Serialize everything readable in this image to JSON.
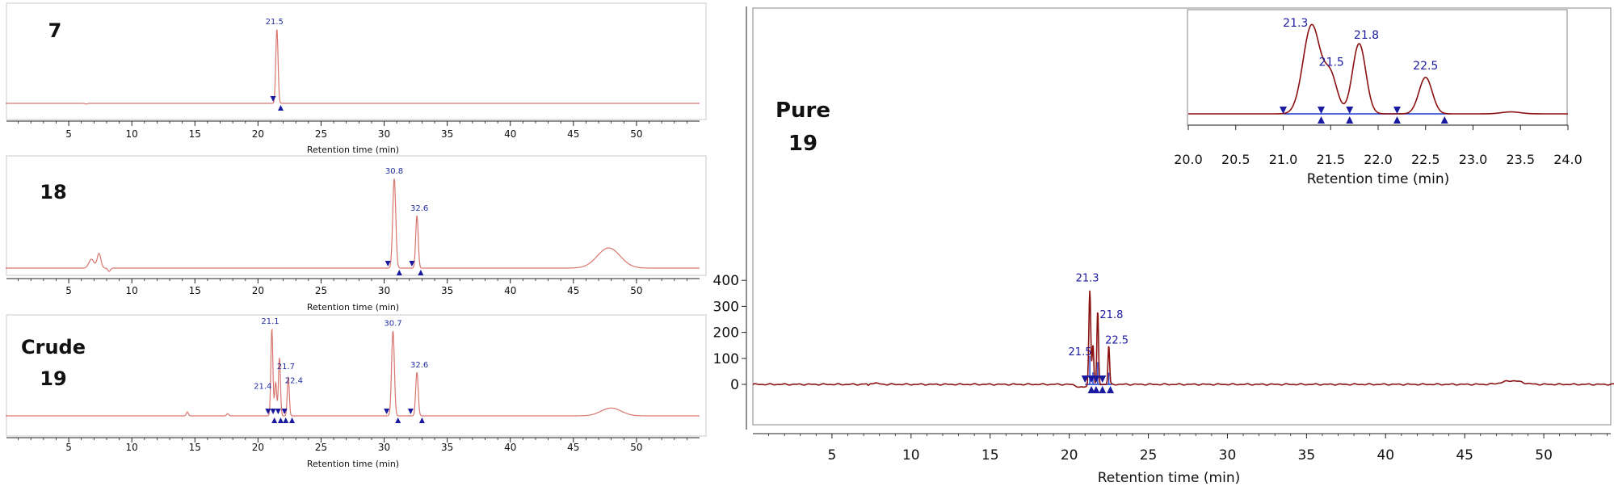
{
  "colors": {
    "trace_light": "#d9766f",
    "trace_dark": "#8b1010",
    "marker": "#1a1aa0",
    "baseline": "#1b3bcf",
    "label_small": "#1f2fa0",
    "label_large": "#1a1aa0",
    "frame": "#9a9a9a",
    "axis": "#222222",
    "panel_border": "#c8c8c8",
    "text": "#111111"
  },
  "chart_data": [
    {
      "id": "panel-7",
      "type": "line",
      "sample_label": [
        "7"
      ],
      "xlabel": "Retention time (min)",
      "xlim": [
        0,
        55
      ],
      "ylim": [
        -20,
        400
      ],
      "xticks": [
        5,
        10,
        15,
        20,
        25,
        30,
        35,
        40,
        45,
        50
      ],
      "baseline": 2,
      "peaks": [
        {
          "rt": 21.5,
          "height": 365,
          "width": 0.09,
          "label": "21.5"
        }
      ],
      "bumps": [
        {
          "rt": 6.4,
          "height": -4,
          "width": 0.08
        }
      ],
      "markers_down": [
        21.2
      ],
      "markers_up": [
        21.8
      ]
    },
    {
      "id": "panel-18",
      "type": "line",
      "sample_label": [
        "18"
      ],
      "xlabel": "Retention time (min)",
      "xlim": [
        0,
        55
      ],
      "ylim": [
        -20,
        400
      ],
      "xticks": [
        5,
        10,
        15,
        20,
        25,
        30,
        35,
        40,
        45,
        50
      ],
      "baseline": 2,
      "peaks": [
        {
          "rt": 30.8,
          "height": 400,
          "width": 0.12,
          "label": "30.8"
        },
        {
          "rt": 32.6,
          "height": 235,
          "width": 0.1,
          "label": "32.6"
        }
      ],
      "bumps": [
        {
          "rt": 6.8,
          "height": 40,
          "width": 0.2
        },
        {
          "rt": 7.4,
          "height": 65,
          "width": 0.15
        },
        {
          "rt": 8.2,
          "height": -15,
          "width": 0.1
        },
        {
          "rt": 47.8,
          "height": 90,
          "width": 0.9
        }
      ],
      "markers_down": [
        30.3,
        32.2
      ],
      "markers_up": [
        31.2,
        32.9
      ]
    },
    {
      "id": "panel-crude-19",
      "type": "line",
      "sample_label": [
        "Crude",
        "19"
      ],
      "xlabel": "Retention time (min)",
      "xlim": [
        0,
        55
      ],
      "ylim": [
        -20,
        400
      ],
      "xticks": [
        5,
        10,
        15,
        20,
        25,
        30,
        35,
        40,
        45,
        50
      ],
      "baseline": 2,
      "peaks": [
        {
          "rt": 21.1,
          "height": 390,
          "width": 0.08,
          "label": "21.1"
        },
        {
          "rt": 21.4,
          "height": 150,
          "width": 0.08,
          "label": "21.4"
        },
        {
          "rt": 21.7,
          "height": 260,
          "width": 0.08,
          "label": "21.7"
        },
        {
          "rt": 22.4,
          "height": 175,
          "width": 0.08,
          "label": "22.4"
        },
        {
          "rt": 30.7,
          "height": 380,
          "width": 0.11,
          "label": "30.7"
        },
        {
          "rt": 32.6,
          "height": 195,
          "width": 0.1,
          "label": "32.6"
        }
      ],
      "bumps": [
        {
          "rt": 14.4,
          "height": 18,
          "width": 0.08
        },
        {
          "rt": 17.6,
          "height": 10,
          "width": 0.08
        },
        {
          "rt": 48.0,
          "height": 35,
          "width": 0.8
        }
      ],
      "markers_down": [
        20.8,
        21.2,
        21.6,
        22.1
      ],
      "markers_up": [
        21.3,
        21.8,
        22.2,
        22.7,
        31.1,
        33.0
      ],
      "markers_down2": [
        30.2,
        32.1
      ]
    },
    {
      "id": "panel-pure-19",
      "type": "line",
      "sample_label": [
        "Pure",
        "19"
      ],
      "xlabel": "Retention time (min)",
      "xlim": [
        0,
        55
      ],
      "ylim": [
        -50,
        400
      ],
      "xticks": [
        5,
        10,
        15,
        20,
        25,
        30,
        35,
        40,
        45,
        50
      ],
      "yticks": [
        0,
        100,
        200,
        300,
        400
      ],
      "baseline": 0,
      "peaks": [
        {
          "rt": 21.3,
          "height": 365,
          "width": 0.06,
          "label": "21.3"
        },
        {
          "rt": 21.5,
          "height": 155,
          "width": 0.05,
          "label": "21.5"
        },
        {
          "rt": 21.8,
          "height": 285,
          "width": 0.05,
          "label": "21.8"
        },
        {
          "rt": 22.5,
          "height": 150,
          "width": 0.05,
          "label": "22.5"
        }
      ],
      "bumps": [
        {
          "rt": 7.3,
          "height": -8,
          "width": 0.06
        },
        {
          "rt": 7.6,
          "height": 5,
          "width": 0.3
        },
        {
          "rt": 20.8,
          "height": -12,
          "width": 0.3
        },
        {
          "rt": 48.0,
          "height": 14,
          "width": 0.6
        }
      ],
      "markers_down": [
        21.0,
        21.4,
        21.7,
        22.1
      ],
      "markers_up": [
        21.4,
        21.7,
        22.1,
        22.6
      ]
    },
    {
      "id": "inset",
      "type": "line",
      "xlabel": "Retention time (min)",
      "xlim": [
        20.0,
        24.0
      ],
      "ylim": [
        -20,
        400
      ],
      "xticks": [
        "20.0",
        "20.5",
        "21.0",
        "21.5",
        "22.0",
        "22.5",
        "23.0",
        "23.5",
        "24.0"
      ],
      "baseline": 0,
      "peaks": [
        {
          "rt": 21.3,
          "height": 360,
          "width": 0.09,
          "label": "21.3"
        },
        {
          "rt": 21.5,
          "height": 150,
          "width": 0.07,
          "label": "21.5"
        },
        {
          "rt": 21.8,
          "height": 285,
          "width": 0.07,
          "label": "21.8"
        },
        {
          "rt": 22.5,
          "height": 148,
          "width": 0.07,
          "label": "22.5"
        }
      ],
      "bumps": [
        {
          "rt": 23.4,
          "height": 8,
          "width": 0.1
        }
      ],
      "markers_down": [
        21.0,
        21.4,
        21.7,
        22.2
      ],
      "markers_up": [
        21.4,
        21.7,
        22.2,
        22.7
      ]
    }
  ]
}
